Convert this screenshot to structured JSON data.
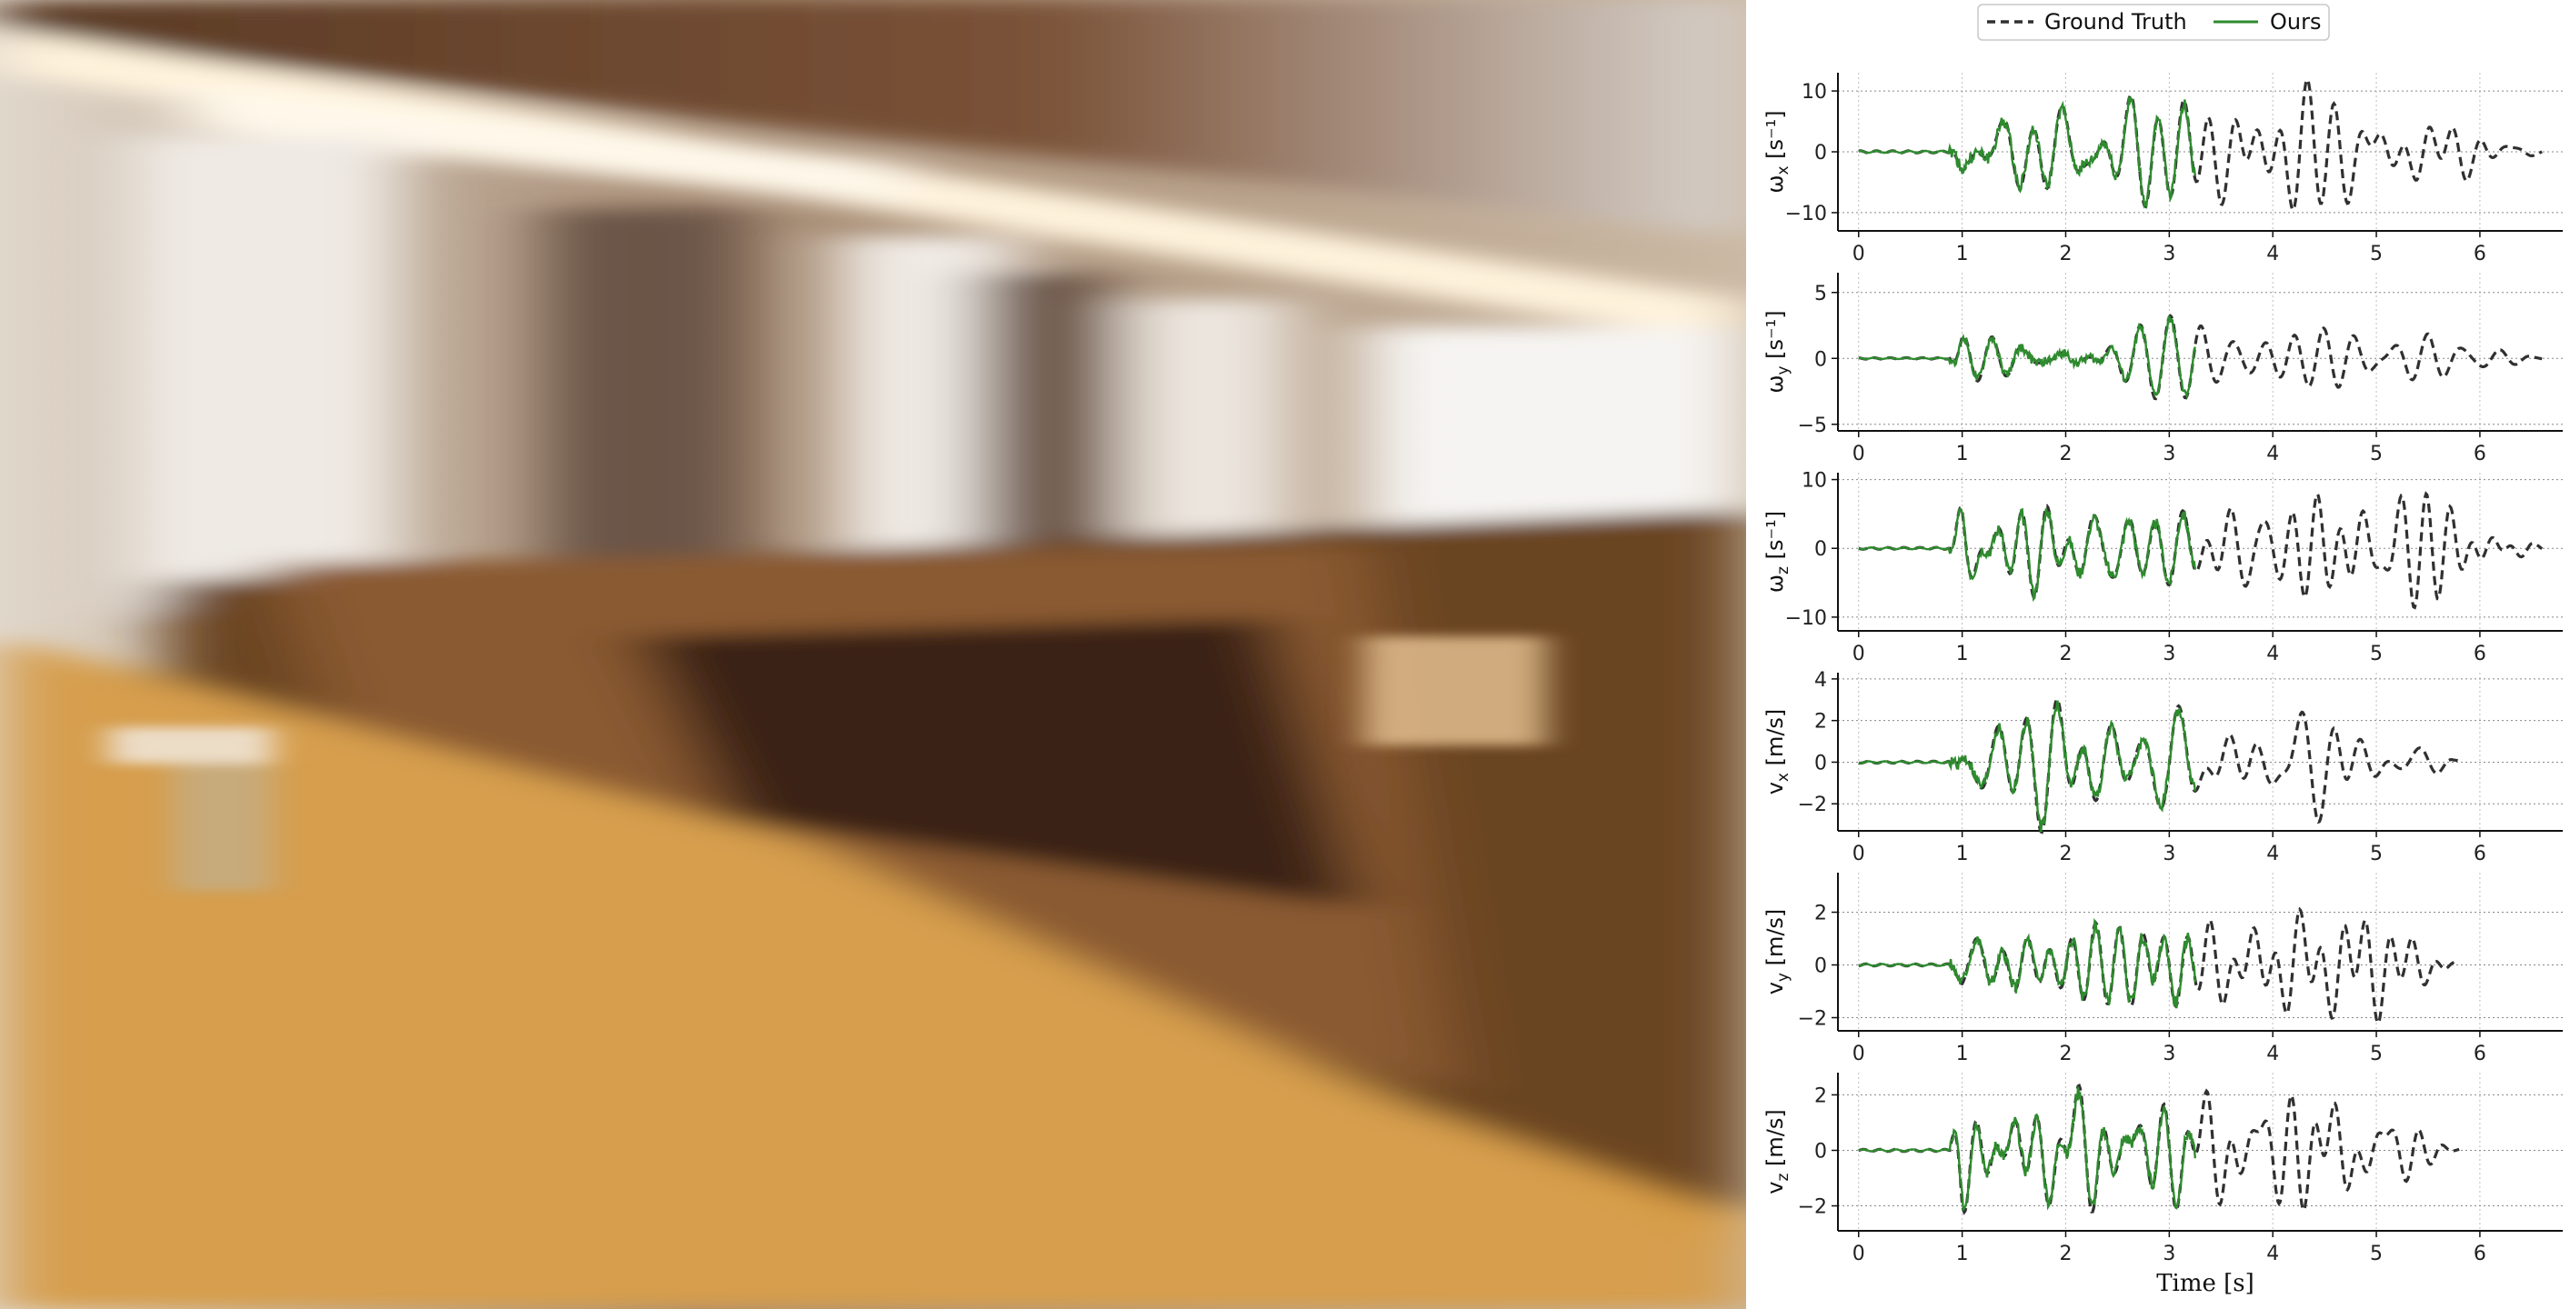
{
  "legend": {
    "entries": [
      {
        "label": "Ground Truth",
        "color": "#303030",
        "style": "dashed"
      },
      {
        "label": "Ours",
        "color": "#2e8b2e",
        "style": "solid"
      }
    ]
  },
  "photo": {
    "scene": "motion-blurred indoor restaurant with wooden chairs and table"
  },
  "chart_data": [
    {
      "type": "line",
      "ylabel_base": "ω",
      "ylabel_sub": "x",
      "ylabel_unit": "[s⁻¹]",
      "ylim": [
        -13,
        13
      ],
      "yticks": [
        -10,
        0,
        10
      ],
      "xlim": [
        -0.2,
        6.8
      ],
      "xticks": [
        0,
        1,
        2,
        3,
        4,
        5,
        6
      ],
      "gt_end": 6.6,
      "ours_end": 3.25,
      "amp": 8.5,
      "seed": 1,
      "onset": 0.88
    },
    {
      "type": "line",
      "ylabel_base": "ω",
      "ylabel_sub": "y",
      "ylabel_unit": "[s⁻¹]",
      "ylim": [
        -5.5,
        6.5
      ],
      "yticks": [
        -5,
        0,
        5
      ],
      "xlim": [
        -0.2,
        6.8
      ],
      "xticks": [
        0,
        1,
        2,
        3,
        4,
        5,
        6
      ],
      "gt_end": 6.6,
      "ours_end": 3.25,
      "amp": 2.6,
      "seed": 2,
      "onset": 0.88
    },
    {
      "type": "line",
      "ylabel_base": "ω",
      "ylabel_sub": "z",
      "ylabel_unit": "[s⁻¹]",
      "ylim": [
        -12,
        11
      ],
      "yticks": [
        -10,
        0,
        10
      ],
      "xlim": [
        -0.2,
        6.8
      ],
      "xticks": [
        0,
        1,
        2,
        3,
        4,
        5,
        6
      ],
      "gt_end": 6.6,
      "ours_end": 3.25,
      "amp": 7,
      "seed": 3,
      "onset": 0.88
    },
    {
      "type": "line",
      "ylabel_base": "v",
      "ylabel_sub": "x",
      "ylabel_unit": "[m/s]",
      "ylim": [
        -3.3,
        4.3
      ],
      "yticks": [
        -2,
        0,
        2,
        4
      ],
      "xlim": [
        -0.2,
        6.8
      ],
      "xticks": [
        0,
        1,
        2,
        3,
        4,
        5,
        6
      ],
      "gt_end": 5.8,
      "ours_end": 3.25,
      "amp": 2.4,
      "seed": 4,
      "onset": 0.88
    },
    {
      "type": "line",
      "ylabel_base": "v",
      "ylabel_sub": "y",
      "ylabel_unit": "[m/s]",
      "ylim": [
        -2.5,
        3.5
      ],
      "yticks": [
        -2,
        0,
        2
      ],
      "xlim": [
        -0.2,
        6.8
      ],
      "xticks": [
        0,
        1,
        2,
        3,
        4,
        5,
        6
      ],
      "gt_end": 5.8,
      "ours_end": 3.25,
      "amp": 2.0,
      "seed": 5,
      "onset": 0.88
    },
    {
      "type": "line",
      "ylabel_base": "v",
      "ylabel_sub": "z",
      "ylabel_unit": "[m/s]",
      "ylim": [
        -2.9,
        2.8
      ],
      "yticks": [
        -2,
        0,
        2
      ],
      "xlim": [
        -0.2,
        6.8
      ],
      "xticks": [
        0,
        1,
        2,
        3,
        4,
        5,
        6
      ],
      "gt_end": 5.8,
      "ours_end": 3.25,
      "amp": 2.0,
      "seed": 6,
      "onset": 0.88
    }
  ],
  "xlabel": "Time [s]"
}
